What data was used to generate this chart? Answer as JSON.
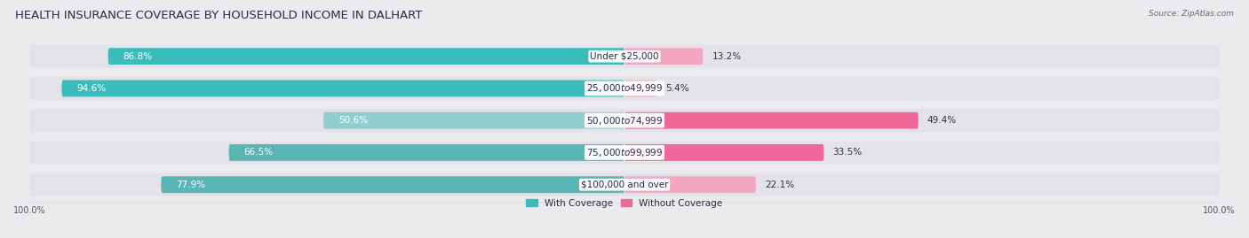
{
  "title": "HEALTH INSURANCE COVERAGE BY HOUSEHOLD INCOME IN DALHART",
  "source": "Source: ZipAtlas.com",
  "categories": [
    "Under $25,000",
    "$25,000 to $49,999",
    "$50,000 to $74,999",
    "$75,000 to $99,999",
    "$100,000 and over"
  ],
  "with_coverage": [
    86.8,
    94.6,
    50.6,
    66.5,
    77.9
  ],
  "without_coverage": [
    13.2,
    5.4,
    49.4,
    33.5,
    22.1
  ],
  "with_colors": [
    "#3bbcbc",
    "#3bbcbc",
    "#90cece",
    "#5ab5b5",
    "#5ab5b5"
  ],
  "without_colors": [
    "#f4a8c0",
    "#f4a8c0",
    "#f06898",
    "#f06898",
    "#f4a8c0"
  ],
  "bg_color": "#ebebee",
  "row_bg_color": "#e2e2e8",
  "legend_with": "With Coverage",
  "legend_without": "Without Coverage",
  "title_fontsize": 9.5,
  "label_fontsize": 7.5,
  "cat_fontsize": 7.5,
  "pct_fontsize": 7.5,
  "axis_label_fontsize": 7,
  "bar_height": 0.52,
  "figsize": [
    14.06,
    2.69
  ],
  "dpi": 100,
  "xlim_left": -100,
  "xlim_right": 100
}
